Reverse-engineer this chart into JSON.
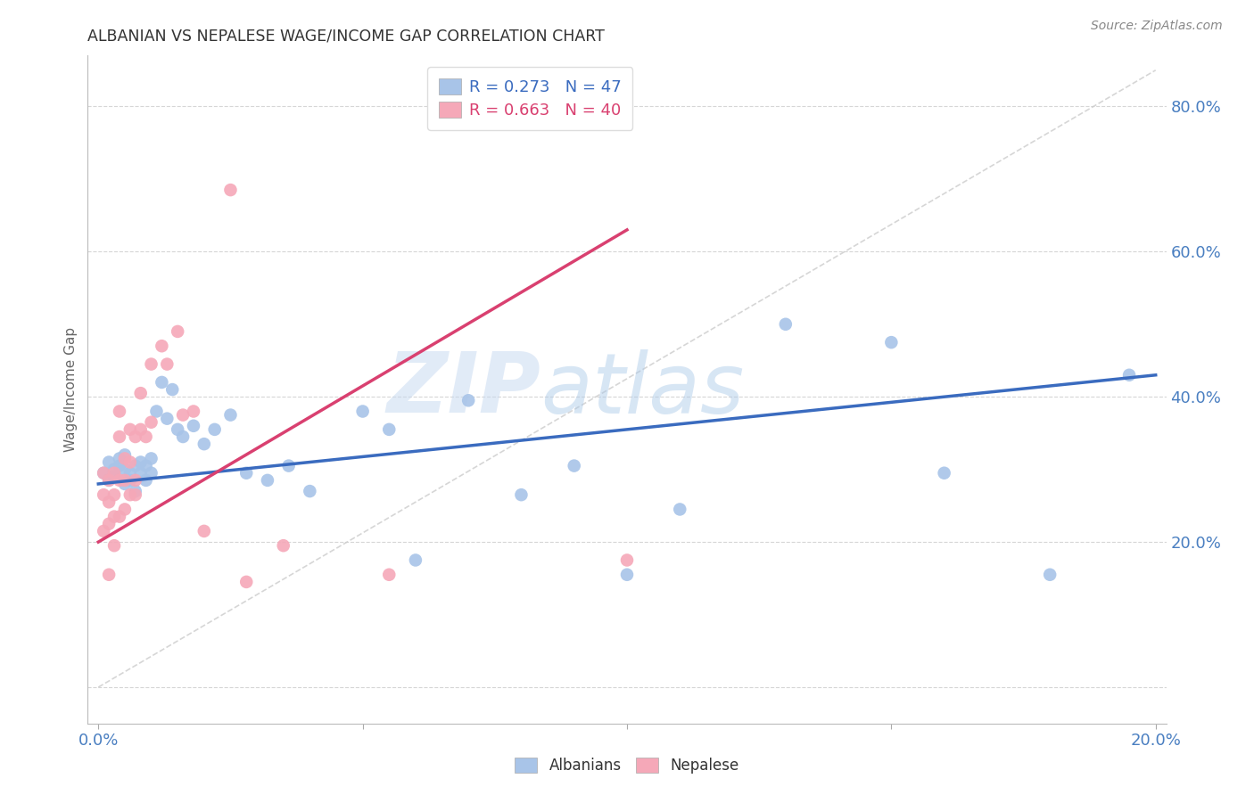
{
  "title": "ALBANIAN VS NEPALESE WAGE/INCOME GAP CORRELATION CHART",
  "source": "Source: ZipAtlas.com",
  "ylabel": "Wage/Income Gap",
  "xlim": [
    -0.002,
    0.202
  ],
  "ylim": [
    -0.05,
    0.87
  ],
  "yticks": [
    0.0,
    0.2,
    0.4,
    0.6,
    0.8
  ],
  "ytick_labels": [
    "",
    "20.0%",
    "40.0%",
    "60.0%",
    "80.0%"
  ],
  "xticks": [
    0.0,
    0.05,
    0.1,
    0.15,
    0.2
  ],
  "xtick_labels": [
    "0.0%",
    "",
    "",
    "",
    "20.0%"
  ],
  "albanian_R": 0.273,
  "albanian_N": 47,
  "nepalese_R": 0.663,
  "nepalese_N": 40,
  "albanian_color": "#a8c4e8",
  "nepalese_color": "#f5a8b8",
  "albanian_line_color": "#3a6bbf",
  "nepalese_line_color": "#d94070",
  "diagonal_color": "#cccccc",
  "background_color": "#ffffff",
  "grid_color": "#cccccc",
  "axis_label_color": "#4a7fc1",
  "title_color": "#333333",
  "albanian_x": [
    0.001,
    0.002,
    0.002,
    0.003,
    0.003,
    0.004,
    0.004,
    0.005,
    0.005,
    0.005,
    0.006,
    0.006,
    0.007,
    0.007,
    0.008,
    0.008,
    0.009,
    0.009,
    0.01,
    0.01,
    0.011,
    0.012,
    0.013,
    0.014,
    0.015,
    0.016,
    0.018,
    0.02,
    0.022,
    0.025,
    0.028,
    0.032,
    0.036,
    0.04,
    0.05,
    0.055,
    0.06,
    0.07,
    0.08,
    0.09,
    0.1,
    0.11,
    0.13,
    0.15,
    0.16,
    0.18,
    0.195
  ],
  "albanian_y": [
    0.295,
    0.285,
    0.31,
    0.3,
    0.29,
    0.305,
    0.315,
    0.28,
    0.3,
    0.32,
    0.285,
    0.295,
    0.305,
    0.27,
    0.31,
    0.295,
    0.305,
    0.285,
    0.295,
    0.315,
    0.38,
    0.42,
    0.37,
    0.41,
    0.355,
    0.345,
    0.36,
    0.335,
    0.355,
    0.375,
    0.295,
    0.285,
    0.305,
    0.27,
    0.38,
    0.355,
    0.175,
    0.395,
    0.265,
    0.305,
    0.155,
    0.245,
    0.5,
    0.475,
    0.295,
    0.155,
    0.43
  ],
  "nepalese_x": [
    0.001,
    0.001,
    0.001,
    0.002,
    0.002,
    0.002,
    0.002,
    0.003,
    0.003,
    0.003,
    0.003,
    0.004,
    0.004,
    0.004,
    0.004,
    0.005,
    0.005,
    0.005,
    0.006,
    0.006,
    0.006,
    0.007,
    0.007,
    0.007,
    0.008,
    0.008,
    0.009,
    0.01,
    0.01,
    0.012,
    0.013,
    0.015,
    0.016,
    0.018,
    0.02,
    0.025,
    0.028,
    0.035,
    0.055,
    0.1
  ],
  "nepalese_y": [
    0.295,
    0.265,
    0.215,
    0.285,
    0.255,
    0.225,
    0.155,
    0.295,
    0.265,
    0.235,
    0.195,
    0.38,
    0.345,
    0.285,
    0.235,
    0.315,
    0.285,
    0.245,
    0.355,
    0.31,
    0.265,
    0.345,
    0.285,
    0.265,
    0.405,
    0.355,
    0.345,
    0.445,
    0.365,
    0.47,
    0.445,
    0.49,
    0.375,
    0.38,
    0.215,
    0.685,
    0.145,
    0.195,
    0.155,
    0.175
  ],
  "watermark_zip": "ZIP",
  "watermark_atlas": "atlas",
  "legend_fontsize": 13,
  "title_fontsize": 12.5
}
